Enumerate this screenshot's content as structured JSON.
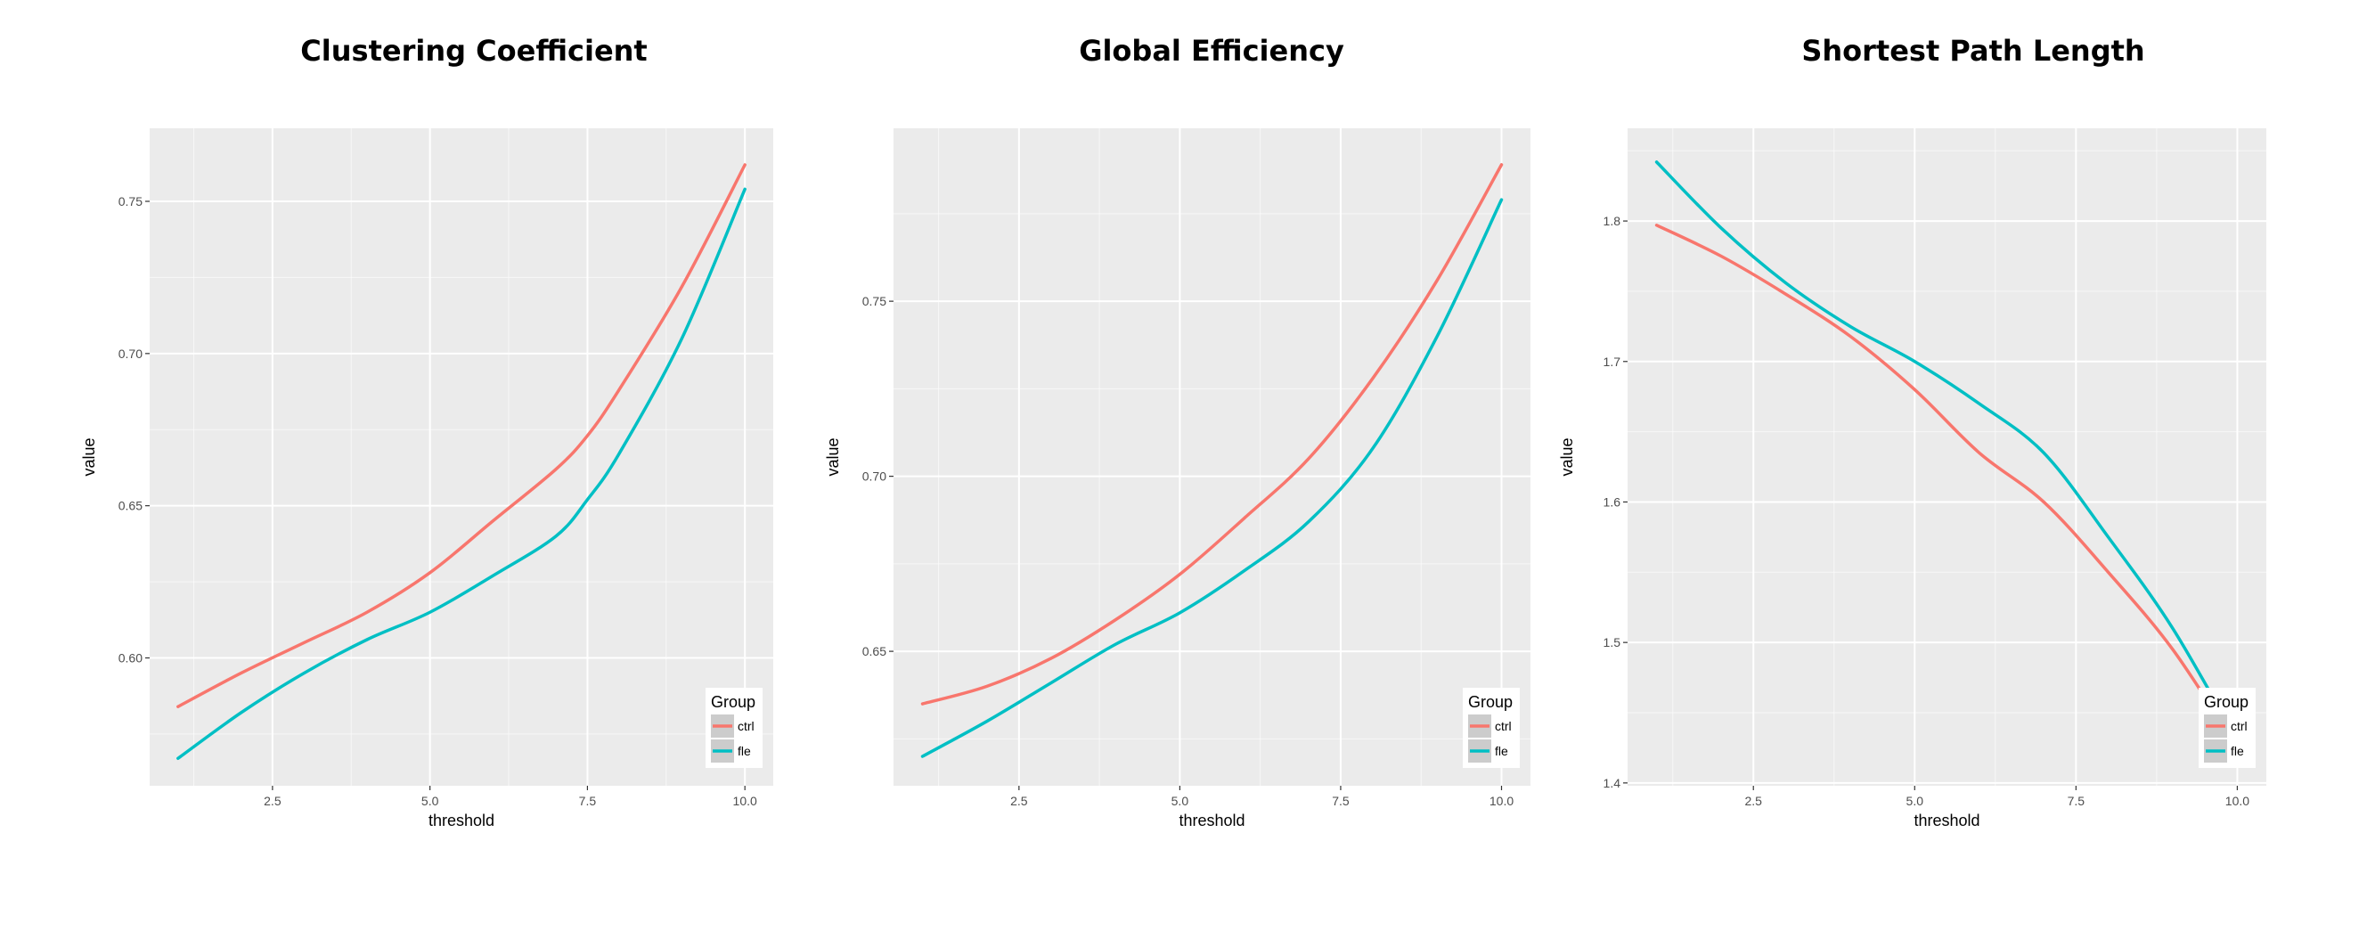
{
  "colors": {
    "ctrl": "#F8766D",
    "fle": "#00BFC4",
    "panel_bg": "#EBEBEB",
    "grid": "#FFFFFF"
  },
  "chart_data": [
    {
      "type": "line",
      "title": "Clustering Coefficient",
      "xlabel": "threshold",
      "ylabel": "value",
      "xlim": [
        0.55,
        10.45
      ],
      "ylim": [
        0.558,
        0.774
      ],
      "xticks": [
        2.5,
        5.0,
        7.5,
        10.0
      ],
      "xtick_labels": [
        "2.5",
        "5.0",
        "7.5",
        "10.0"
      ],
      "yticks": [
        0.6,
        0.65,
        0.7,
        0.75
      ],
      "ytick_labels": [
        "0.60",
        "0.65",
        "0.70",
        "0.75"
      ],
      "grid": true,
      "legend": {
        "title": "Group",
        "placement": "bottom-right",
        "entries": [
          "ctrl",
          "fle"
        ]
      },
      "x": [
        1,
        2,
        3,
        4,
        5,
        6,
        7,
        7.5,
        8,
        9,
        10
      ],
      "series": [
        {
          "name": "ctrl",
          "values": [
            0.584,
            0.595,
            0.605,
            0.615,
            0.628,
            0.645,
            0.662,
            0.673,
            0.688,
            0.722,
            0.762
          ]
        },
        {
          "name": "fle",
          "values": [
            0.567,
            0.582,
            0.595,
            0.606,
            0.615,
            0.627,
            0.64,
            0.652,
            0.667,
            0.705,
            0.754
          ]
        }
      ]
    },
    {
      "type": "line",
      "title": "Global Efficiency",
      "xlabel": "threshold",
      "ylabel": "value",
      "xlim": [
        0.55,
        10.45
      ],
      "ylim": [
        0.6116,
        0.7994
      ],
      "xticks": [
        2.5,
        5.0,
        7.5,
        10.0
      ],
      "xtick_labels": [
        "2.5",
        "5.0",
        "7.5",
        "10.0"
      ],
      "yticks": [
        0.65,
        0.7,
        0.75
      ],
      "ytick_labels": [
        "0.65",
        "0.70",
        "0.75"
      ],
      "grid": true,
      "legend": {
        "title": "Group",
        "placement": "bottom-right",
        "entries": [
          "ctrl",
          "fle"
        ]
      },
      "x": [
        1,
        2,
        3,
        4,
        5,
        6,
        7,
        8,
        9,
        10
      ],
      "series": [
        {
          "name": "ctrl",
          "values": [
            0.635,
            0.64,
            0.648,
            0.659,
            0.672,
            0.688,
            0.705,
            0.728,
            0.756,
            0.789
          ]
        },
        {
          "name": "fle",
          "values": [
            0.62,
            0.63,
            0.641,
            0.652,
            0.661,
            0.673,
            0.687,
            0.708,
            0.74,
            0.779
          ]
        }
      ]
    },
    {
      "type": "line",
      "title": "Shortest Path Length",
      "xlabel": "threshold",
      "ylabel": "value",
      "xlim": [
        0.55,
        10.45
      ],
      "ylim": [
        1.398,
        1.866
      ],
      "xticks": [
        2.5,
        5.0,
        7.5,
        10.0
      ],
      "xtick_labels": [
        "2.5",
        "5.0",
        "7.5",
        "10.0"
      ],
      "yticks": [
        1.4,
        1.5,
        1.6,
        1.7,
        1.8
      ],
      "ytick_labels": [
        "1.4",
        "1.5",
        "1.6",
        "1.7",
        "1.8"
      ],
      "grid": true,
      "legend": {
        "title": "Group",
        "placement": "bottom-right",
        "entries": [
          "ctrl",
          "fle"
        ]
      },
      "x": [
        1,
        2,
        3,
        4,
        5,
        6,
        7,
        8,
        9,
        10
      ],
      "series": [
        {
          "name": "ctrl",
          "values": [
            1.797,
            1.775,
            1.748,
            1.718,
            1.68,
            1.635,
            1.6,
            1.55,
            1.495,
            1.425
          ]
        },
        {
          "name": "fle",
          "values": [
            1.842,
            1.795,
            1.756,
            1.725,
            1.7,
            1.67,
            1.635,
            1.575,
            1.51,
            1.43
          ]
        }
      ]
    }
  ]
}
